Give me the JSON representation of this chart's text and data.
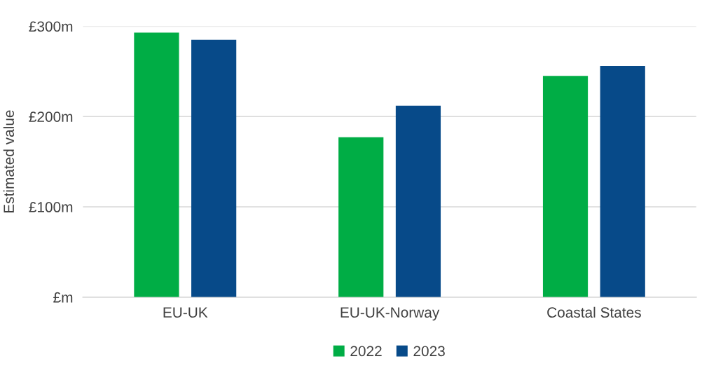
{
  "chart_data": {
    "type": "bar",
    "ylabel": "Estimated value",
    "categories": [
      "EU-UK",
      "EU-UK-Norway",
      "Coastal States"
    ],
    "series": [
      {
        "name": "2022",
        "color": "#00ad45",
        "values": [
          293,
          177,
          245
        ]
      },
      {
        "name": "2023",
        "color": "#074a89",
        "values": [
          285,
          212,
          256
        ]
      }
    ],
    "ylim": [
      0,
      300
    ],
    "yticks": [
      {
        "value": 0,
        "label": "£m"
      },
      {
        "value": 100,
        "label": "£100m"
      },
      {
        "value": 200,
        "label": "£200m"
      },
      {
        "value": 300,
        "label": "£300m"
      }
    ],
    "grid": "y",
    "legend": "bottom"
  }
}
